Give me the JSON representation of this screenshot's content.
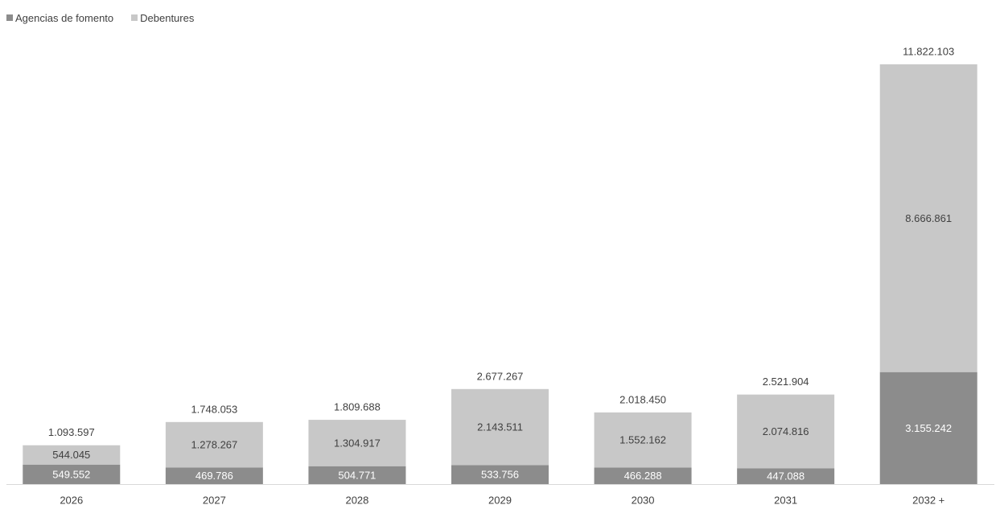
{
  "chart_data": {
    "type": "bar",
    "stacked": true,
    "categories": [
      "2026",
      "2027",
      "2028",
      "2029",
      "2030",
      "2031",
      "2032 +"
    ],
    "series": [
      {
        "name": "Agencias de fomento",
        "color": "#8c8c8c",
        "values": [
          549552,
          469786,
          504771,
          533756,
          466288,
          447088,
          3155242
        ],
        "labels": [
          "549.552",
          "469.786",
          "504.771",
          "533.756",
          "466.288",
          "447.088",
          "3.155.242"
        ]
      },
      {
        "name": "Debentures",
        "color": "#c8c8c8",
        "values": [
          544045,
          1278267,
          1304917,
          2143511,
          1552162,
          2074816,
          8666861
        ],
        "labels": [
          "544.045",
          "1.278.267",
          "1.304.917",
          "2.143.511",
          "1.552.162",
          "2.074.816",
          "8.666.861"
        ]
      }
    ],
    "totals": [
      1093597,
      1748053,
      1809688,
      2677267,
      2018450,
      2521904,
      11822103
    ],
    "total_labels": [
      "1.093.597",
      "1.748.053",
      "1.809.688",
      "2.677.267",
      "2.018.450",
      "2.521.904",
      "11.822.103"
    ],
    "ylim": [
      0,
      12500000
    ],
    "grid": false,
    "legend_position": "top-left",
    "title": "",
    "xlabel": "",
    "ylabel": ""
  }
}
